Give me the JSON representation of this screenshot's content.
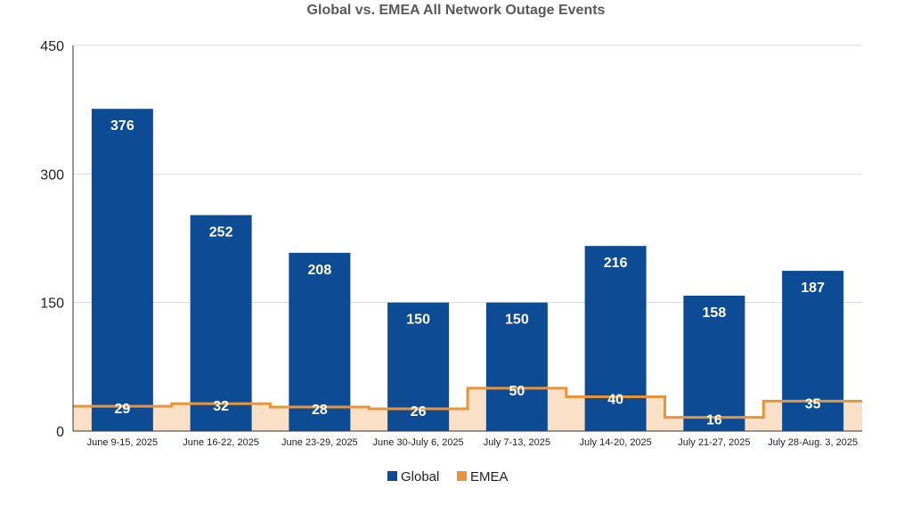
{
  "chart_data": {
    "type": "bar",
    "title": "Global vs. EMEA All Network Outage Events",
    "categories": [
      "June 9-15, 2025",
      "June 16-22, 2025",
      "June 23-29, 2025",
      "June 30-July 6, 2025",
      "July 7-13, 2025",
      "July 14-20, 2025",
      "July 21-27, 2025",
      "July 28-Aug. 3, 2025"
    ],
    "series": [
      {
        "name": "Global",
        "type": "bar",
        "color": "#0d4c94",
        "values": [
          376,
          252,
          208,
          150,
          150,
          216,
          158,
          187
        ]
      },
      {
        "name": "EMEA",
        "type": "stepped-area",
        "color": "#e8953a",
        "fill": "#fbe0c8",
        "values": [
          29,
          32,
          28,
          26,
          50,
          40,
          16,
          35
        ]
      }
    ],
    "ylim": [
      0,
      450
    ],
    "yticks": [
      0,
      150,
      300,
      450
    ],
    "grid": true,
    "legend_position": "bottom"
  }
}
